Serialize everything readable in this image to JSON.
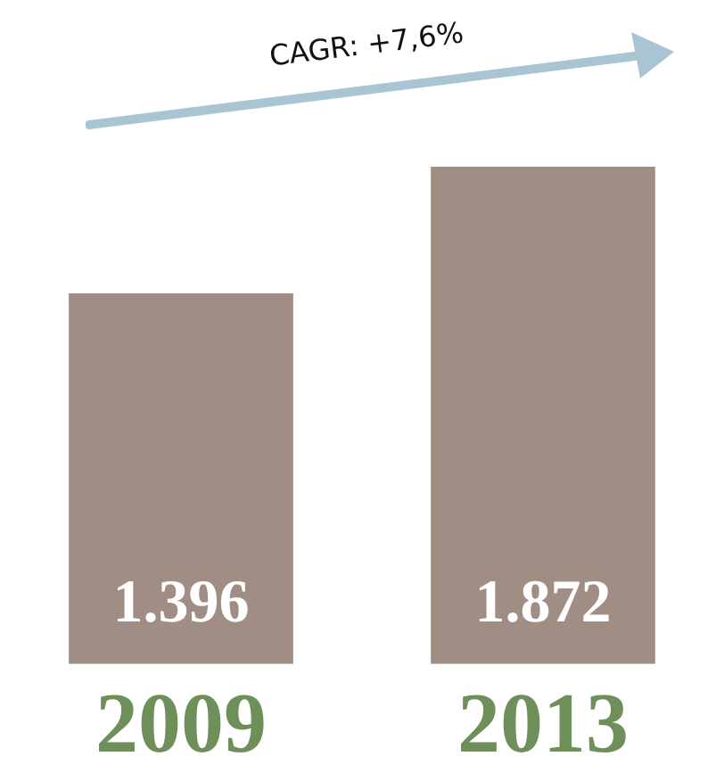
{
  "chart_data": {
    "type": "bar",
    "categories": [
      "2009",
      "2013"
    ],
    "values": [
      1396,
      1872
    ],
    "value_labels": [
      "1.396",
      "1.872"
    ],
    "color": "#a08e84",
    "annotations": [
      "CAGR: +7,6%"
    ]
  }
}
